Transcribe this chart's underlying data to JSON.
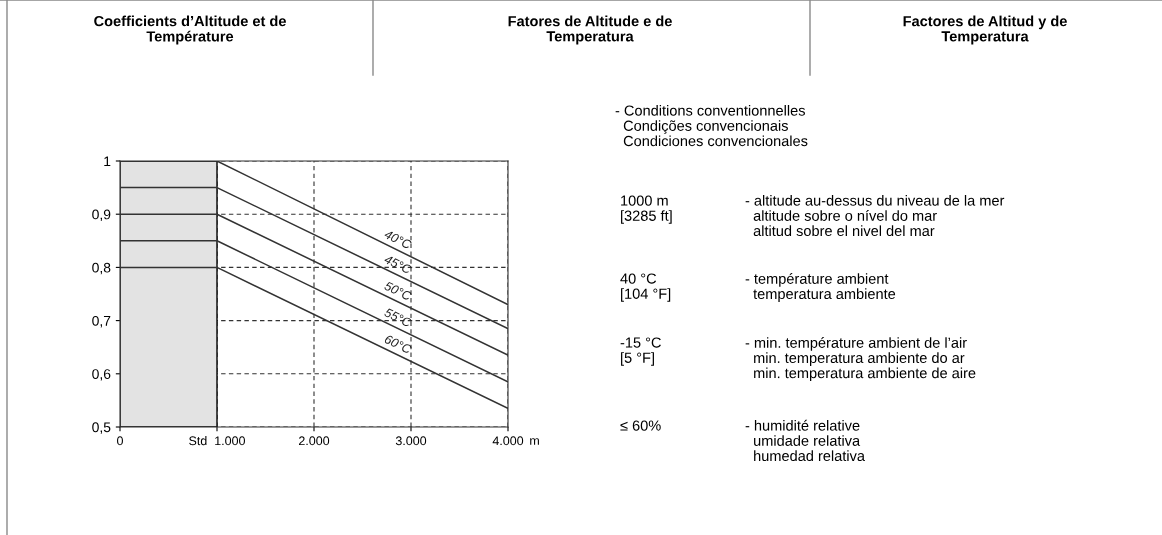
{
  "chart_data": {
    "type": "line",
    "x": [
      0,
      1000,
      4000
    ],
    "series": [
      {
        "name": "40°C",
        "color": "#333333",
        "values": [
          1,
          1,
          0.73
        ]
      },
      {
        "name": "45°C",
        "color": "#333333",
        "values": [
          0.95,
          0.95,
          0.685
        ]
      },
      {
        "name": "50°C",
        "color": "#333333",
        "values": [
          0.9,
          0.9,
          0.635
        ]
      },
      {
        "name": "55°C",
        "color": "#333333",
        "values": [
          0.85,
          0.85,
          0.585
        ]
      },
      {
        "name": "60°C",
        "color": "#333333",
        "values": [
          0.8,
          0.8,
          0.535
        ]
      }
    ],
    "xlabel": "m",
    "xlim": [
      0,
      4000
    ],
    "xticks": [
      {
        "value": 0,
        "label": "0"
      },
      {
        "value": 1000,
        "label": "Std  1.000"
      },
      {
        "value": 2000,
        "label": "2.000"
      },
      {
        "value": 3000,
        "label": "3.000"
      },
      {
        "value": 4000,
        "label": "4.000"
      }
    ],
    "ylim": [
      0.5,
      1
    ],
    "yticks": [
      {
        "value": 0.5,
        "label": "0,5"
      },
      {
        "value": 0.6,
        "label": "0,6"
      },
      {
        "value": 0.7,
        "label": "0,7"
      },
      {
        "value": 0.8,
        "label": "0,8"
      },
      {
        "value": 0.9,
        "label": "0,9"
      },
      {
        "value": 1,
        "label": "1"
      }
    ],
    "bands": [
      {
        "axis": "x",
        "from": 0,
        "to": 1000,
        "color": "#e3e3e3"
      }
    ],
    "grid": true,
    "annotations": [
      "Coefficients d’Altitude et de\nTempérature",
      "Fatores de Altitude e de\nTemperatura",
      "Factores de Altitud y de\nTemperatura",
      "- Conditions conventionnelles\n  Condições convencionais\n  Condiciones convencionales",
      "1000 m\n[3285 ft]",
      "- altitude au-dessus du niveau de la mer\n  altitude sobre o nível do mar\n  altitud sobre el nivel del mar",
      "40 °C\n[104 °F]",
      "- température ambient\n  temperatura ambiente",
      "-15 °C\n[5 °F]",
      "- min. température ambient de l’air\n  min. temperatura ambiente do ar\n  min. temperatura ambiente de aire",
      "≤ 60%",
      "- humidité relative\n  umidade relativa\n  humedad relativa"
    ]
  }
}
